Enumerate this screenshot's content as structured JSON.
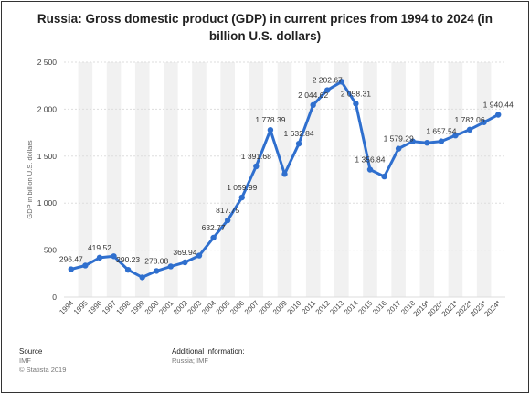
{
  "title": "Russia: Gross domestic product (GDP) in current prices from 1994 to 2024 (in billion U.S. dollars)",
  "footer": {
    "source_heading": "Source",
    "source_value": "IMF",
    "copyright": "© Statista 2019",
    "additional_heading": "Additional Information:",
    "additional_value": "Russia; IMF"
  },
  "colors": {
    "line": "#2f6fce",
    "grid": "#dddddd",
    "band": "#f1f1f1",
    "text": "#333333"
  },
  "chart_data": {
    "type": "line",
    "title": "Russia: Gross domestic product (GDP) in current prices from 1994 to 2024 (in billion U.S. dollars)",
    "xlabel": "",
    "ylabel": "GDP in billion U.S. dollars",
    "ylim": [
      0,
      2500
    ],
    "yticks": [
      0,
      500,
      1000,
      1500,
      2000,
      2500
    ],
    "ytick_labels": [
      "0",
      "500",
      "1 000",
      "1 500",
      "2 000",
      "2 500"
    ],
    "grid": true,
    "categories": [
      "1994",
      "1995",
      "1996",
      "1997",
      "1998",
      "1999",
      "2000",
      "2001",
      "2002",
      "2003",
      "2004",
      "2005",
      "2006",
      "2007",
      "2008",
      "2009",
      "2010",
      "2011",
      "2012",
      "2013",
      "2014",
      "2015",
      "2016",
      "2017",
      "2018",
      "2019*",
      "2020*",
      "2021*",
      "2022*",
      "2023*",
      "2024*"
    ],
    "series": [
      {
        "values": [
          296.47,
          336,
          419.52,
          435,
          290.23,
          210,
          278.08,
          326,
          369.94,
          442,
          632.77,
          817.75,
          1059.99,
          1391.68,
          1778.39,
          1310,
          1632.84,
          2044.62,
          2202.67,
          2292,
          2058.31,
          1356.84,
          1283,
          1579.29,
          1657,
          1642,
          1657.54,
          1720,
          1782.06,
          1860,
          1940.44
        ]
      }
    ],
    "data_labels": [
      {
        "index": 0,
        "text": "296.47"
      },
      {
        "index": 2,
        "text": "419.52"
      },
      {
        "index": 4,
        "text": "290.23"
      },
      {
        "index": 6,
        "text": "278.08"
      },
      {
        "index": 8,
        "text": "369.94"
      },
      {
        "index": 10,
        "text": "632.77"
      },
      {
        "index": 11,
        "text": "817.75"
      },
      {
        "index": 12,
        "text": "1 059.99"
      },
      {
        "index": 13,
        "text": "1 391.68"
      },
      {
        "index": 14,
        "text": "1 778.39"
      },
      {
        "index": 16,
        "text": "1 632.84"
      },
      {
        "index": 17,
        "text": "2 044.62"
      },
      {
        "index": 18,
        "text": "2 202.67"
      },
      {
        "index": 20,
        "text": "2 058.31"
      },
      {
        "index": 21,
        "text": "1 356.84"
      },
      {
        "index": 23,
        "text": "1 579.29"
      },
      {
        "index": 26,
        "text": "1 657.54"
      },
      {
        "index": 28,
        "text": "1 782.06"
      },
      {
        "index": 30,
        "text": "1 940.44"
      }
    ]
  }
}
